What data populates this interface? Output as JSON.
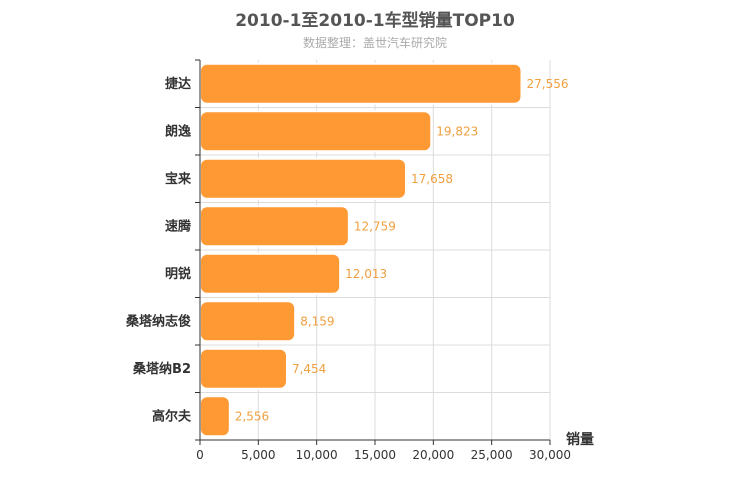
{
  "chart_data": {
    "type": "bar",
    "orientation": "horizontal",
    "title": "2010-1至2010-1车型销量TOP10",
    "subtitle": "数据整理：盖世汽车研究院",
    "xlabel": "销量",
    "ylabel": "",
    "categories": [
      "捷达",
      "朗逸",
      "宝来",
      "速腾",
      "明锐",
      "桑塔纳志俊",
      "桑塔纳B2",
      "高尔夫"
    ],
    "values": [
      27556,
      19823,
      17658,
      12759,
      12013,
      8159,
      7454,
      2556
    ],
    "value_labels": [
      "27,556",
      "19,823",
      "17,658",
      "12,759",
      "12,013",
      "8,159",
      "7,454",
      "2,556"
    ],
    "xlim": [
      0,
      30000
    ],
    "x_ticks": [
      0,
      5000,
      10000,
      15000,
      20000,
      25000,
      30000
    ],
    "x_tick_labels": [
      "0",
      "5,000",
      "10,000",
      "15,000",
      "20,000",
      "25,000",
      "30,000"
    ],
    "grid": true,
    "bar_color": "#ff9933",
    "data_label_color": "#f0a040"
  }
}
